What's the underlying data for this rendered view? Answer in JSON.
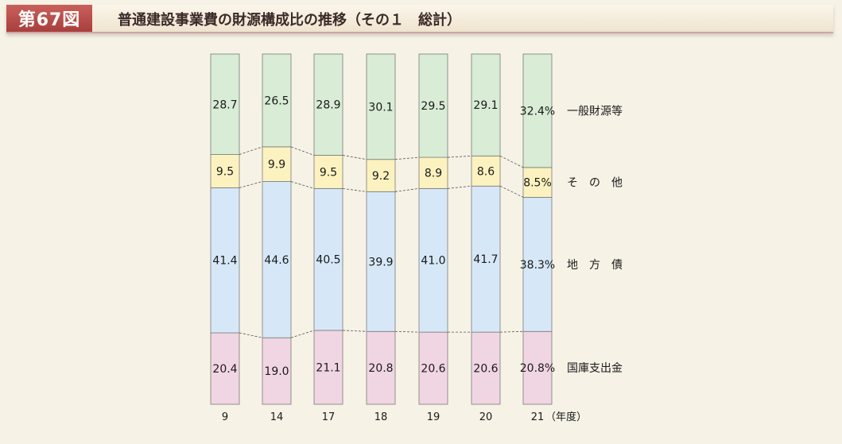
{
  "header": {
    "figure_number": "第67図",
    "title": "普通建設事業費の財源構成比の推移（その１　総計）"
  },
  "chart_data": {
    "type": "bar",
    "stacked": true,
    "categories": [
      "9",
      "14",
      "17",
      "18",
      "19",
      "20",
      "21"
    ],
    "x_unit": "（年度）",
    "series": [
      {
        "name": "国庫支出金",
        "color": "#f0d6e2",
        "values": [
          20.4,
          19.0,
          21.1,
          20.8,
          20.6,
          20.6,
          20.8
        ],
        "labels": [
          "20.4",
          "19.0",
          "21.1",
          "20.8",
          "20.6",
          "20.6",
          "20.8%"
        ]
      },
      {
        "name": "地　方　債",
        "color": "#d6e8f8",
        "values": [
          41.4,
          44.6,
          40.5,
          39.9,
          41.0,
          41.7,
          38.3
        ],
        "labels": [
          "41.4",
          "44.6",
          "40.5",
          "39.9",
          "41.0",
          "41.7",
          "38.3%"
        ]
      },
      {
        "name": "そ　の　他",
        "color": "#fcf2bf",
        "values": [
          9.5,
          9.9,
          9.5,
          9.2,
          8.9,
          8.6,
          8.5
        ],
        "labels": [
          "9.5",
          "9.9",
          "9.5",
          "9.2",
          "8.9",
          "8.6",
          "8.5%"
        ]
      },
      {
        "name": "一般財源等",
        "color": "#d8ecd6",
        "values": [
          28.7,
          26.5,
          28.9,
          30.1,
          29.5,
          29.1,
          32.4
        ],
        "labels": [
          "28.7",
          "26.5",
          "28.9",
          "30.1",
          "29.5",
          "29.1",
          "32.4%"
        ]
      }
    ],
    "ylim": [
      0,
      100
    ]
  }
}
